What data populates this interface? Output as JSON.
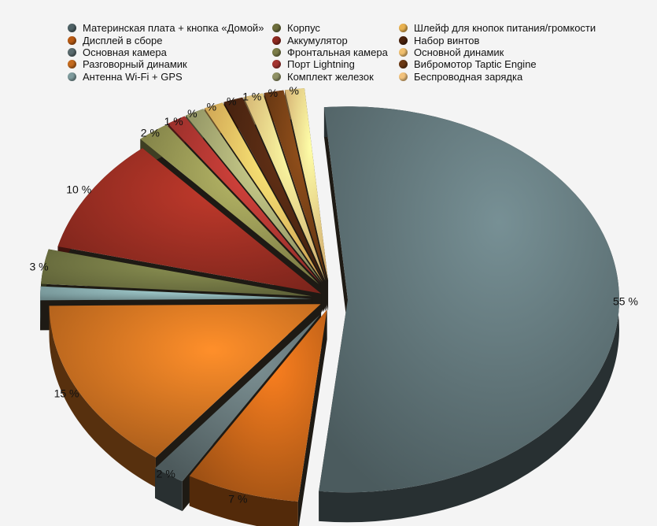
{
  "chart_data": {
    "type": "pie",
    "categories": [
      "Материнская плата + кнопка «Домой»",
      "Дисплей в сборе",
      "Основная камера",
      "Разговорный динамик",
      "Антенна Wi-Fi + GPS",
      "Корпус",
      "Аккумулятор",
      "Фронтальная камера",
      "Порт Lightning",
      "Комплект железок",
      "Шлейф для кнопок питания/громкости",
      "Набор винтов",
      "Основной динамик",
      "Вибромотор Taptic Engine",
      "Беспроводная зарядка"
    ],
    "values": [
      55,
      7,
      2,
      15,
      0.5,
      3,
      10,
      2,
      1,
      0.5,
      0.5,
      0.5,
      1,
      1,
      1
    ],
    "slice_order": [
      "Антенна Wi-Fi + GPS",
      "Корпус",
      "Шлейф для кнопок питания/громкости",
      "Дисплей в сборе",
      "Набор винтов",
      "Аккумулятор",
      "Основная камера",
      "Фронтальная камера",
      "Основной динамик",
      "Порт Lightning",
      "Вибромотор Taptic Engine",
      "Разговорный динамик",
      "Комплект железок",
      "Материнская плата + кнопка «Домой»",
      "Беспроводная зарядка"
    ],
    "labels": [
      "55 %",
      "7 %",
      "2 %",
      "15 %",
      "",
      "3 %",
      "10 %",
      "2 %",
      "1 %",
      "%",
      "%",
      "%",
      "1 %",
      "%",
      "%"
    ],
    "colors": [
      "#586b6e",
      "#b95e17",
      "#5b6a6c",
      "#c26a1f",
      "#7e9fa1",
      "#6b6f3f",
      "#8e2a20",
      "#8a8a4d",
      "#a4332e",
      "#9a9c6a",
      "#e9b05a",
      "#4a2410",
      "#f0c37c",
      "#6d3b14",
      "#f2c27d"
    ],
    "legend_columns": 3,
    "legend_placement": "top"
  },
  "legend": [
    {
      "label": "Материнская плата + кнопка «Домой»",
      "color": "#4f6266"
    },
    {
      "label": "Корпус",
      "color": "#6d6e3c"
    },
    {
      "label": "Шлейф для кнопок питания/громкости",
      "color": "#e8b14f"
    },
    {
      "label": "Дисплей в сборе",
      "color": "#b85a13"
    },
    {
      "label": "Аккумулятор",
      "color": "#8e2a20"
    },
    {
      "label": "Набор винтов",
      "color": "#4a220c"
    },
    {
      "label": "Основная камера",
      "color": "#5a6b6e"
    },
    {
      "label": "Фронтальная камера",
      "color": "#7b7c48"
    },
    {
      "label": "Основной динамик",
      "color": "#f0bf6e"
    },
    {
      "label": "Разговорный динамик",
      "color": "#c46a1e"
    },
    {
      "label": "Порт Lightning",
      "color": "#a33430"
    },
    {
      "label": "Вибромотор Taptic Engine",
      "color": "#6a3813"
    },
    {
      "label": "Антенна Wi-Fi + GPS",
      "color": "#7e9b9d"
    },
    {
      "label": "Комплект железок",
      "color": "#8f9165"
    },
    {
      "label": "Беспроводная зарядка",
      "color": "#f2c27c"
    }
  ]
}
